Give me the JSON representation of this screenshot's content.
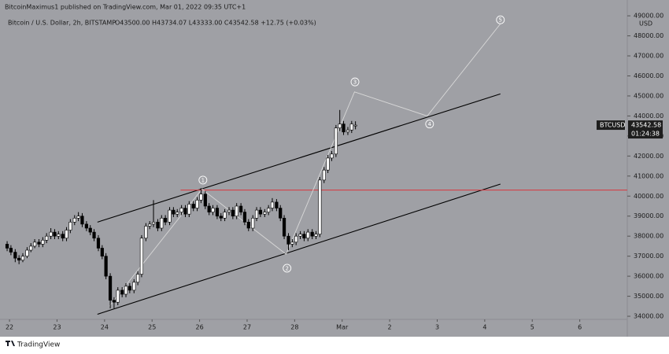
{
  "header": {
    "published": "BitcoinMaximus1 published on TradingView.com, Mar 01, 2022 09:35 UTC+1",
    "symbol": "Bitcoin / U.S. Dollar, 2h, BITSTAMP",
    "ohlc": "O43500.00 H43734.07 L43333.00 C43542.58 +12.75 (+0.03%)"
  },
  "footer": {
    "brand": "TradingView"
  },
  "chart_data": {
    "type": "candlestick",
    "currency": "USD",
    "background": "#9fa0a5",
    "up_color": "#ffffff",
    "down_color": "#000000",
    "wick_color": "#000000",
    "xlim": [
      21.8,
      35.0
    ],
    "xticks": [
      22,
      23,
      24,
      25,
      26,
      27,
      28,
      {
        "value": 29,
        "label": "Mar"
      },
      {
        "value": 30,
        "label": "2"
      },
      {
        "value": 31,
        "label": "3"
      },
      {
        "value": 32,
        "label": "4"
      },
      {
        "value": 33,
        "label": "5"
      },
      {
        "value": 34,
        "label": "6"
      }
    ],
    "ylim": [
      32980,
      49790
    ],
    "yticks": [
      {
        "value": 34000,
        "label": "34000.00"
      },
      {
        "value": 35000,
        "label": "35000.00"
      },
      {
        "value": 36000,
        "label": "36000.00"
      },
      {
        "value": 37000,
        "label": "37000.00"
      },
      {
        "value": 38000,
        "label": "38000.00"
      },
      {
        "value": 39000,
        "label": "39000.00"
      },
      {
        "value": 40000,
        "label": "40000.00"
      },
      {
        "value": 41000,
        "label": "41000.00"
      },
      {
        "value": 42000,
        "label": "42000.00"
      },
      {
        "value": 43000,
        "label": "43000.00"
      },
      {
        "value": 44000,
        "label": "44000.00"
      },
      {
        "value": 45000,
        "label": "45000.00"
      },
      {
        "value": 46000,
        "label": "46000.00"
      },
      {
        "value": 47000,
        "label": "47000.00"
      },
      {
        "value": 48000,
        "label": "48000.00"
      },
      {
        "value": 49000,
        "label": "49000.00"
      }
    ],
    "x": [
      21.95,
      22.03,
      22.12,
      22.2,
      22.28,
      22.37,
      22.45,
      22.53,
      22.62,
      22.7,
      22.78,
      22.87,
      22.95,
      23.03,
      23.12,
      23.2,
      23.28,
      23.37,
      23.45,
      23.53,
      23.62,
      23.7,
      23.78,
      23.87,
      23.95,
      24.03,
      24.12,
      24.2,
      24.28,
      24.37,
      24.45,
      24.53,
      24.62,
      24.7,
      24.78,
      24.87,
      24.95,
      25.03,
      25.12,
      25.2,
      25.28,
      25.37,
      25.45,
      25.53,
      25.62,
      25.7,
      25.78,
      25.87,
      25.95,
      26.03,
      26.12,
      26.2,
      26.28,
      26.37,
      26.45,
      26.53,
      26.62,
      26.7,
      26.78,
      26.87,
      26.95,
      27.03,
      27.12,
      27.2,
      27.28,
      27.37,
      27.45,
      27.53,
      27.62,
      27.7,
      27.78,
      27.87,
      27.95,
      28.03,
      28.12,
      28.2,
      28.28,
      28.37,
      28.45,
      28.53,
      28.62,
      28.7,
      28.78,
      28.87,
      28.95,
      29.03,
      29.12,
      29.2,
      29.28
    ],
    "open": [
      37600,
      37400,
      37200,
      36900,
      36800,
      37000,
      37300,
      37500,
      37700,
      37600,
      37800,
      38000,
      38200,
      38000,
      38100,
      37900,
      38300,
      38700,
      38900,
      39000,
      38600,
      38400,
      38200,
      37900,
      37400,
      37000,
      36000,
      34800,
      34700,
      35300,
      35100,
      35500,
      35300,
      35700,
      36100,
      37900,
      38500,
      38600,
      38700,
      38400,
      38900,
      38700,
      39300,
      39100,
      39200,
      39400,
      39100,
      39600,
      39400,
      39800,
      40100,
      39500,
      39200,
      39400,
      39000,
      38900,
      39200,
      39300,
      39000,
      39500,
      39200,
      38700,
      38400,
      38900,
      39300,
      39100,
      39200,
      39400,
      39700,
      39400,
      38900,
      38000,
      37600,
      37700,
      38000,
      38100,
      37900,
      38200,
      38000,
      38100,
      40800,
      41300,
      41900,
      42100,
      43400,
      43600,
      43200,
      43300,
      43500
    ],
    "high": [
      37750,
      37550,
      37350,
      37050,
      37150,
      37450,
      37650,
      37850,
      37850,
      37950,
      38150,
      38400,
      38350,
      38250,
      38250,
      38450,
      38850,
      39050,
      39200,
      39150,
      38750,
      38550,
      38350,
      38050,
      37550,
      37150,
      36150,
      34950,
      35450,
      35450,
      35650,
      35650,
      35850,
      36250,
      38050,
      38650,
      38750,
      39800,
      38850,
      39050,
      39050,
      39450,
      39450,
      39350,
      39550,
      39550,
      39750,
      39750,
      39950,
      40400,
      40250,
      39650,
      39550,
      39550,
      39150,
      39350,
      39450,
      39450,
      39650,
      39650,
      39350,
      38850,
      39050,
      39450,
      39450,
      39350,
      39550,
      39900,
      39850,
      39550,
      39050,
      38150,
      37850,
      38150,
      38250,
      38250,
      38350,
      38350,
      38250,
      40950,
      41450,
      42050,
      42250,
      43550,
      44300,
      43750,
      43450,
      43750,
      43734.07
    ],
    "low": [
      37250,
      37050,
      36700,
      36600,
      36700,
      36900,
      37200,
      37400,
      37450,
      37450,
      37650,
      37850,
      37850,
      37850,
      37750,
      37750,
      38150,
      38550,
      38750,
      38450,
      38250,
      38050,
      37750,
      37250,
      36850,
      35850,
      34400,
      34400,
      34550,
      34950,
      34950,
      35150,
      35150,
      35550,
      35950,
      37750,
      38350,
      38450,
      38250,
      38250,
      38550,
      38550,
      38950,
      38950,
      39050,
      38950,
      38950,
      39250,
      39250,
      39650,
      39350,
      39050,
      39050,
      38850,
      38750,
      38750,
      39050,
      38850,
      38850,
      39050,
      38550,
      38250,
      38250,
      38750,
      38950,
      38950,
      39050,
      39250,
      39250,
      38750,
      37850,
      37300,
      37450,
      37550,
      37850,
      37750,
      37750,
      37850,
      37850,
      37950,
      40650,
      41150,
      41750,
      41950,
      43250,
      43050,
      43050,
      43150,
      43333
    ],
    "close": [
      37400,
      37200,
      36900,
      36800,
      37000,
      37300,
      37500,
      37700,
      37600,
      37800,
      38000,
      38200,
      38000,
      38100,
      37900,
      38300,
      38700,
      38900,
      39000,
      38600,
      38400,
      38200,
      37900,
      37400,
      37000,
      36000,
      34800,
      34700,
      35300,
      35100,
      35500,
      35300,
      35700,
      36100,
      37900,
      38500,
      38600,
      38700,
      38400,
      38900,
      38700,
      39300,
      39100,
      39200,
      39400,
      39100,
      39600,
      39400,
      39800,
      40100,
      39500,
      39200,
      39400,
      39000,
      38900,
      39200,
      39300,
      39000,
      39500,
      39200,
      38700,
      38400,
      38900,
      39300,
      39100,
      39200,
      39400,
      39700,
      39400,
      38900,
      38000,
      37600,
      37700,
      38000,
      38100,
      37900,
      38200,
      38000,
      38100,
      40800,
      41300,
      41900,
      42100,
      43400,
      43600,
      43200,
      43300,
      43600,
      43542.58
    ],
    "last_price": {
      "symbol": "BTCUSD",
      "value": 43542.58,
      "label": "43542.58",
      "countdown": "01:24:38"
    },
    "trendlines": [
      {
        "x": [
          23.85,
          32.33
        ],
        "y": [
          38700,
          45100
        ],
        "color": "#000000"
      },
      {
        "x": [
          23.85,
          32.33
        ],
        "y": [
          34100,
          40600
        ],
        "color": "#000000"
      },
      {
        "x": [
          25.6,
          35.0
        ],
        "y": [
          40300,
          40300
        ],
        "color": "#d9363e"
      },
      {
        "x": [
          24.1,
          26.05,
          27.82,
          29.26,
          30.79,
          32.33
        ],
        "y": [
          34500,
          40350,
          37100,
          45200,
          44000,
          48600
        ],
        "color": "#d8d8d8"
      }
    ],
    "waves": [
      {
        "label": "1",
        "x": 26.07,
        "y": 40800
      },
      {
        "label": "2",
        "x": 27.84,
        "y": 36400
      },
      {
        "label": "3",
        "x": 29.27,
        "y": 45700
      },
      {
        "label": "4",
        "x": 30.84,
        "y": 43600
      },
      {
        "label": "5",
        "x": 32.33,
        "y": 48800
      }
    ]
  }
}
